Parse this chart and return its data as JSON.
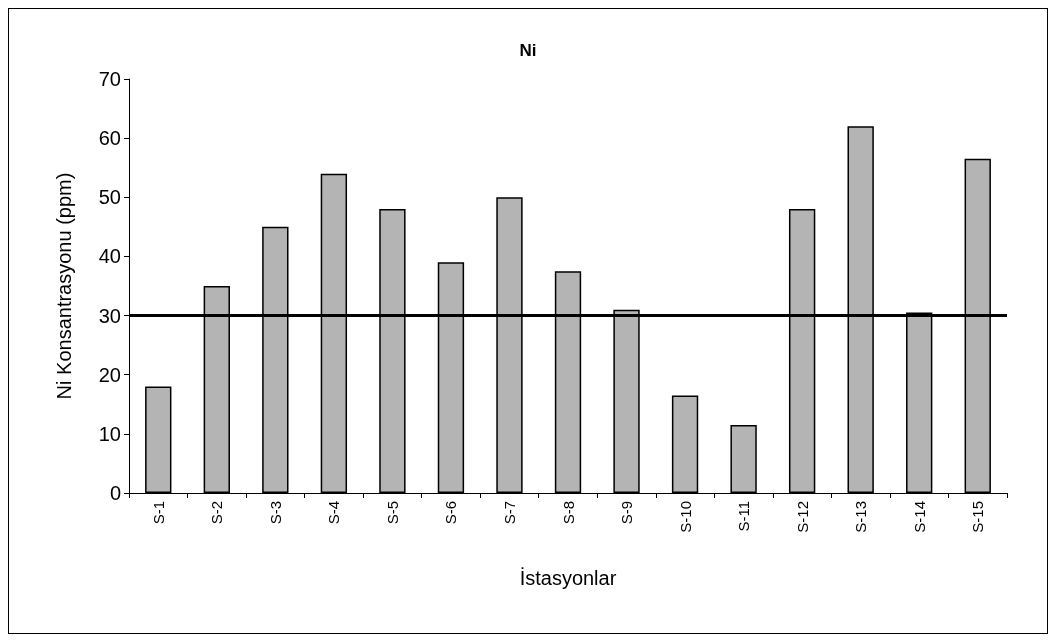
{
  "chart_data": {
    "type": "bar",
    "title": "Ni",
    "xlabel": "İstasyonlar",
    "ylabel": "Ni Konsantrasyonu (ppm)",
    "categories": [
      "S-1",
      "S-2",
      "S-3",
      "S-4",
      "S-5",
      "S-6",
      "S-7",
      "S-8",
      "S-9",
      "S-10",
      "S-11",
      "S-12",
      "S-13",
      "S-14",
      "S-15"
    ],
    "values": [
      18,
      35,
      45,
      54,
      48,
      39,
      50,
      37.5,
      31,
      16.5,
      11.5,
      48,
      62,
      30.5,
      56.5
    ],
    "color": "#b4b4b4",
    "ylim": [
      0,
      70
    ],
    "yticks": [
      0,
      10,
      20,
      30,
      40,
      50,
      60,
      70
    ],
    "grid": false,
    "ref_lines": [
      {
        "axis": "y",
        "value": 30,
        "color": "#000000",
        "line_style": "solid"
      }
    ]
  }
}
